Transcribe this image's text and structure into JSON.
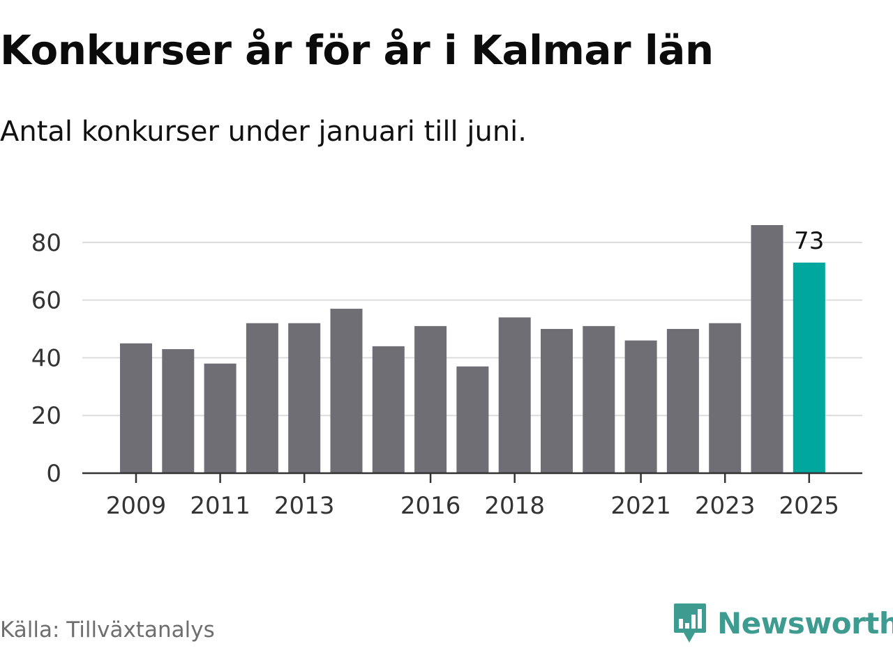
{
  "header": {
    "title": "Konkurser år för år i Kalmar län",
    "subtitle": "Antal konkurser under januari till juni."
  },
  "footer": {
    "source": "Källa: Tillväxtanalys",
    "brand": "Newsworthy",
    "brand_icon": "newsworthy-bar-chart-icon",
    "brand_color": "#3e9b8f"
  },
  "chart_data": {
    "type": "bar",
    "title": "",
    "xlabel": "",
    "ylabel": "",
    "categories": [
      "2009",
      "2010",
      "2011",
      "2012",
      "2013",
      "2014",
      "2015",
      "2016",
      "2017",
      "2018",
      "2019",
      "2020",
      "2021",
      "2022",
      "2023",
      "2024",
      "2025"
    ],
    "values": [
      45,
      43,
      38,
      52,
      52,
      57,
      44,
      51,
      37,
      54,
      50,
      51,
      46,
      50,
      52,
      86,
      73
    ],
    "x_tick_labels": [
      "2009",
      "2011",
      "2013",
      "2016",
      "2018",
      "2021",
      "2023",
      "2025"
    ],
    "y_ticks": [
      0,
      20,
      40,
      60,
      80
    ],
    "ylim": [
      0,
      86
    ],
    "grid": true,
    "colors": {
      "default": "#6f6e75",
      "highlight": "#00a79d"
    },
    "highlight_category": "2025",
    "data_labels": [
      {
        "category": "2025",
        "text": "73"
      }
    ]
  }
}
